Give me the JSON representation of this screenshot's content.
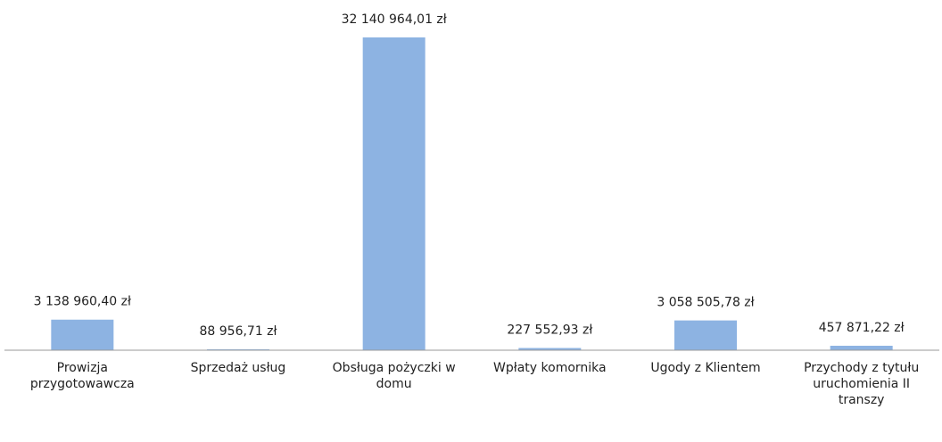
{
  "chart_data": {
    "type": "bar",
    "categories": [
      "Prowizja przygotowawcza",
      "Sprzedaż usług",
      "Obsługa pożyczki w domu",
      "Wpłaty komornika",
      "Ugody z Klientem",
      "Przychody z tytułu uruchomienia II transzy"
    ],
    "values": [
      3138960.4,
      88956.71,
      32140964.01,
      227552.93,
      3058505.78,
      457871.22
    ],
    "value_labels": [
      "3 138 960,40 zł",
      "88 956,71 zł",
      "32 140 964,01 zł",
      "227 552,93 zł",
      "3 058 505,78 zł",
      "457 871,22 zł"
    ],
    "color": "#8db3e2"
  }
}
